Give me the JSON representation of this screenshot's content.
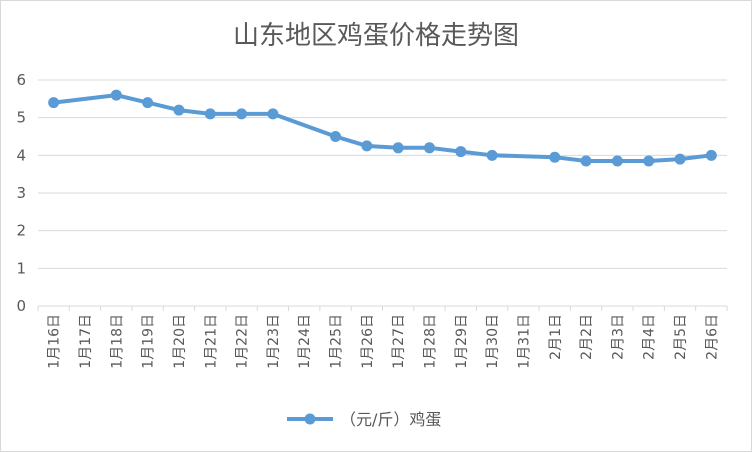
{
  "chart_data": {
    "type": "line",
    "title": "山东地区鸡蛋价格走势图",
    "categories": [
      "1月16日",
      "1月17日",
      "1月18日",
      "1月19日",
      "1月20日",
      "1月21日",
      "1月22日",
      "1月23日",
      "1月24日",
      "1月25日",
      "1月26日",
      "1月27日",
      "1月28日",
      "1月29日",
      "1月30日",
      "1月31日",
      "2月1日",
      "2月2日",
      "2月3日",
      "2月4日",
      "2月5日",
      "2月6日"
    ],
    "series": [
      {
        "name": "（元/斤）鸡蛋",
        "values": [
          5.4,
          null,
          5.6,
          5.4,
          5.2,
          5.1,
          5.1,
          5.1,
          null,
          4.5,
          4.25,
          4.2,
          4.2,
          4.1,
          4.0,
          null,
          3.95,
          3.85,
          3.85,
          3.85,
          3.9,
          4.0
        ],
        "color": "#5B9BD5"
      }
    ],
    "yticks": [
      0,
      1,
      2,
      3,
      4,
      5,
      6
    ],
    "ylim": [
      0,
      6
    ],
    "grid": true,
    "legend": "bottom"
  }
}
